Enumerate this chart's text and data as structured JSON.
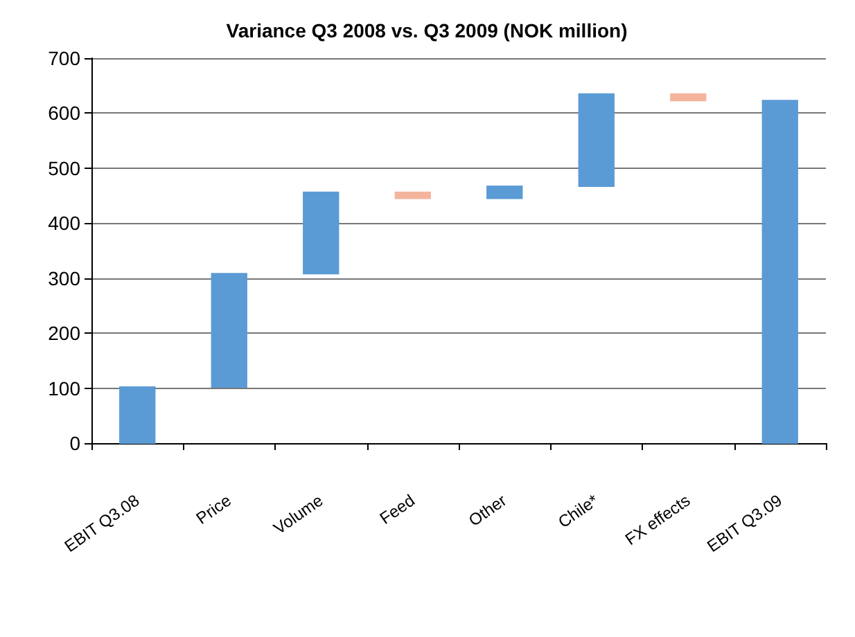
{
  "chart_data": {
    "type": "bar",
    "title": "Variance Q3 2008 vs. Q3 2009 (NOK million)",
    "categories": [
      "EBIT Q3.08",
      "Price",
      "Volume",
      "Feed",
      "Other",
      "Chile*",
      "FX effects",
      "EBIT Q3.09"
    ],
    "values": [
      102,
      206,
      148,
      -11,
      22,
      168,
      -12,
      623
    ],
    "base": [
      0,
      102,
      308,
      456,
      445,
      467,
      635,
      0
    ],
    "colors": [
      "#5b9bd5",
      "#5b9bd5",
      "#5b9bd5",
      "#f4b49c",
      "#5b9bd5",
      "#5b9bd5",
      "#f4b49c",
      "#5b9bd5"
    ],
    "ylim": [
      0,
      700
    ],
    "yticks": [
      0,
      100,
      200,
      300,
      400,
      500,
      600,
      700
    ],
    "grid": "y"
  }
}
